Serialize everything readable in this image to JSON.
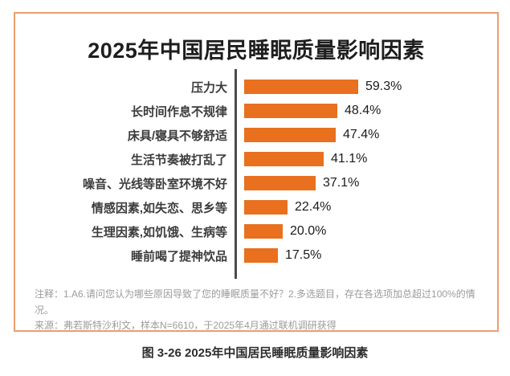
{
  "chart_data": {
    "type": "bar",
    "orientation": "horizontal",
    "title": "2025年中国居民睡眠质量影响因素",
    "xlabel": "",
    "ylabel": "",
    "categories": [
      "压力大",
      "长时间作息不规律",
      "床具/寝具不够舒适",
      "生活节奏被打乱了",
      "噪音、光线等卧室环境不好",
      "情感因素,如失恋、思乡等",
      "生理因素,如饥饿、生病等",
      "睡前喝了提神饮品"
    ],
    "values": [
      59.3,
      48.4,
      47.4,
      41.1,
      37.1,
      22.4,
      20.0,
      17.5
    ],
    "value_labels": [
      "59.3%",
      "48.4%",
      "47.4%",
      "41.1%",
      "37.1%",
      "22.4%",
      "20.0%",
      "17.5%"
    ],
    "unit": "%",
    "xlim": [
      0,
      65
    ],
    "grid": false,
    "legend": null,
    "bar_color": "#e8701e",
    "axis_color": "#4a4a4a"
  },
  "notes": {
    "line1": "注释：1.A6.请问您认为哪些原因导致了您的睡眠质量不好？2.多选题目，存在各选项加总超过100%的情况。",
    "line2": "来源：弗若斯特沙利文，样本N=6610，于2025年4月通过联机调研获得"
  },
  "caption": "图 3-26  2025年中国居民睡眠质量影响因素",
  "colors": {
    "frame_border": "#eb9e71",
    "bar": "#e8701e",
    "axis": "#4a4a4a",
    "title_text": "#1e1e1e",
    "label_text": "#3c3c3c",
    "note_text": "#9b9b9b"
  }
}
